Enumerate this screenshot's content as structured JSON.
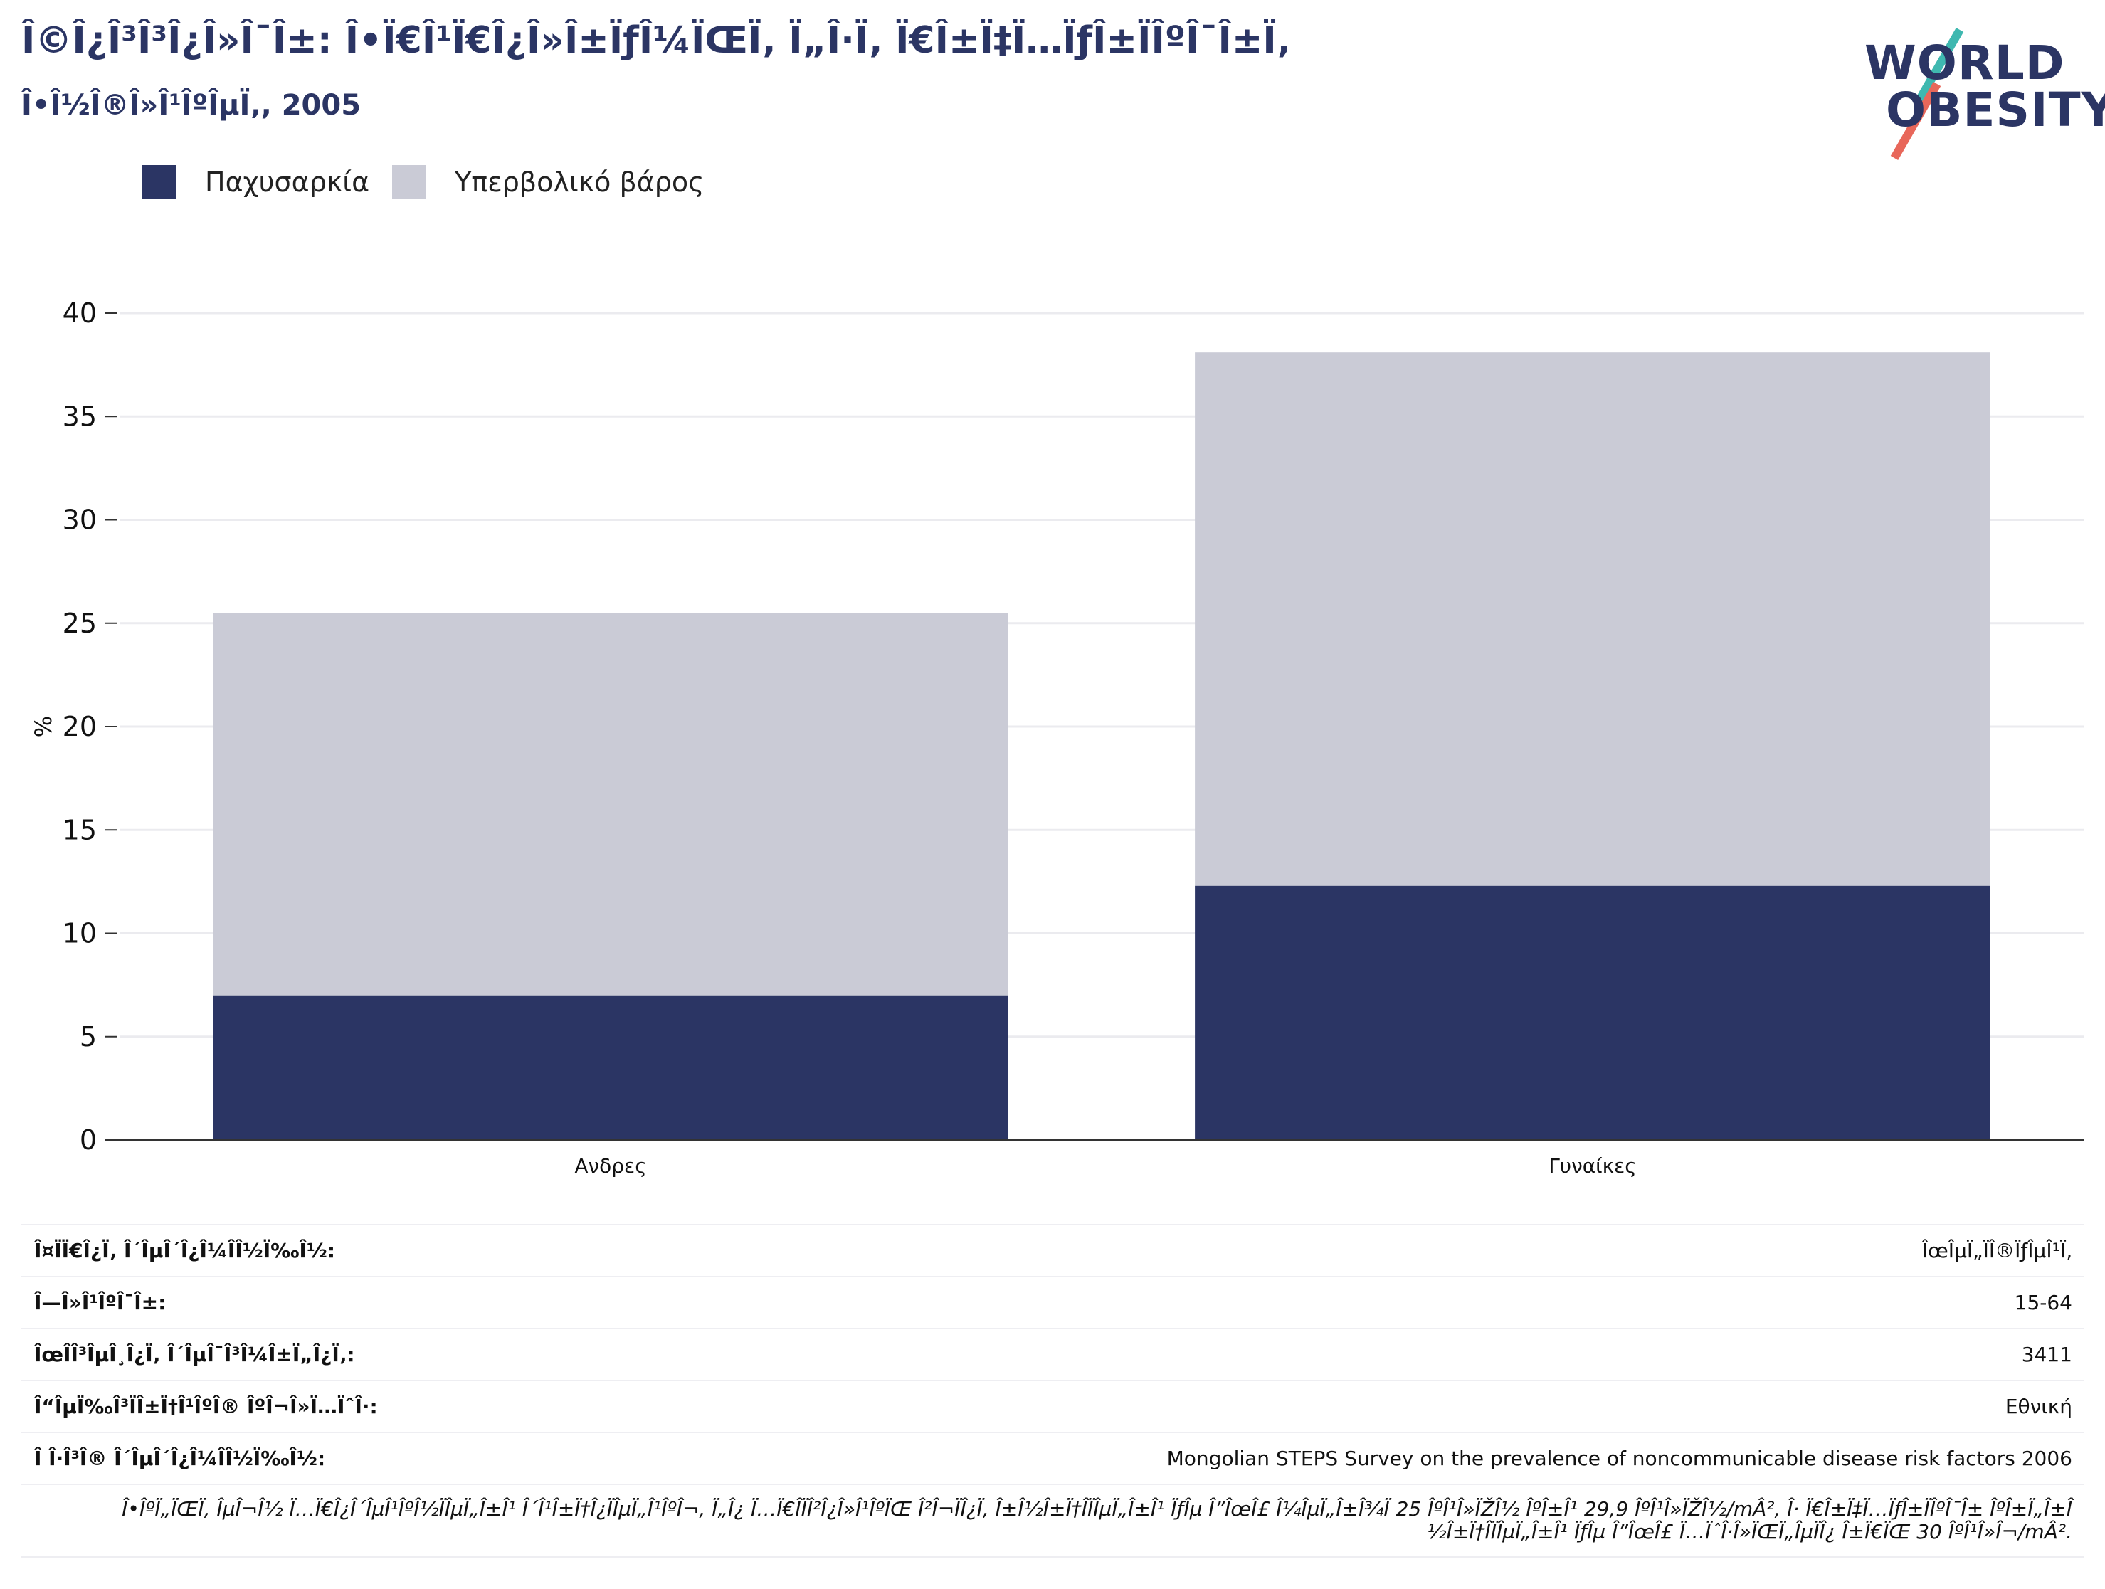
{
  "header": {
    "title": "Î©Î¿Î³Î³Î¿Î»Î¯Î±: Î•Ï€Î¹Ï€Î¿Î»Î±ÏƒÎ¼ÏŒÏ‚ Ï„Î·Ï‚ Ï€Î±Ï‡Ï…ÏƒÎ±ÏÎºÎ¯Î±Ï‚",
    "subtitle": "Î•Î½Î®Î»Î¹ÎºÎµÏ‚, 2005"
  },
  "logo": {
    "line1": "WORLD",
    "line2": "OBESITY"
  },
  "legend": [
    {
      "label": "Παχυσαρκία",
      "color": "#2b3564"
    },
    {
      "label": "Υπερβολικό βάρος",
      "color": "#cacbd6"
    }
  ],
  "chart_data": {
    "type": "bar",
    "stacked": true,
    "categories": [
      "Ανδρες",
      "Γυναίκες"
    ],
    "series": [
      {
        "name": "Παχυσαρκία",
        "values": [
          7.0,
          12.3
        ],
        "color": "#2b3564"
      },
      {
        "name": "Υπερβολικό βάρος",
        "values": [
          18.5,
          25.8
        ],
        "color": "#cacbd6"
      }
    ],
    "ylabel": "%",
    "ylim": [
      0,
      40
    ],
    "yticks": [
      0,
      5,
      10,
      15,
      20,
      25,
      30,
      35,
      40
    ],
    "grid": true
  },
  "info_table": {
    "rows": [
      {
        "label": "Î¤ÏÏ€Î¿Ï‚ Î´ÎµÎ´Î¿Î¼Î­Î½Ï‰Î½:",
        "value": "ÎœÎµÏ„ÏÎ®ÏƒÎµÎ¹Ï‚"
      },
      {
        "label": "Î—Î»Î¹ÎºÎ¯Î±:",
        "value": "15-64"
      },
      {
        "label": "ÎœÎ­Î³ÎµÎ¸Î¿Ï‚ Î´ÎµÎ¯Î³Î¼Î±Ï„Î¿Ï‚:",
        "value": "3411"
      },
      {
        "label": "Î“ÎµÏ‰Î³ÏÎ±Ï†Î¹ÎºÎ® ÎºÎ¬Î»Ï…ÏˆÎ·:",
        "value": "Εθνική"
      },
      {
        "label": "Î Î·Î³Î® Î´ÎµÎ´Î¿Î¼Î­Î½Ï‰Î½:",
        "value": "Mongolian STEPS Survey on the prevalence of noncommunicable disease risk factors 2006"
      }
    ],
    "note": "Î•ÎºÏ„ÏŒÏ‚ ÎµÎ¬Î½ Ï…Ï€Î¿Î´ÎµÎ¹ÎºÎ½ÏÎµÏ„Î±Î¹ Î´Î¹Î±Ï†Î¿ÏÎµÏ„Î¹ÎºÎ¬, Ï„Î¿ Ï…Ï€Î­ÏÎ²Î¿Î»Î¹ÎºÏŒ Î²Î¬ÏÎ¿Ï‚ Î±Î½Î±Ï†Î­ÏÎµÏ„Î±Î¹ ÏƒÎµ Î”ÎœÎ£ Î¼ÎµÏ„Î±Î¾Ï 25 ÎºÎ¹Î»ÏŽÎ½ ÎºÎ±Î¹ 29,9 ÎºÎ¹Î»ÏŽÎ½/mÂ², Î· Ï€Î±Ï‡Ï…ÏƒÎ±ÏÎºÎ¯Î± ÎºÎ±Ï„Î±Î½Î±Ï†Î­ÏÎµÏ„Î±Î¹ ÏƒÎµ Î”ÎœÎ£ Ï…ÏˆÎ·Î»ÏŒÏ„ÎµÏÎ¿ Î±Ï€ÏŒ 30 ÎºÎ¹Î»Î¬/mÂ²."
  }
}
